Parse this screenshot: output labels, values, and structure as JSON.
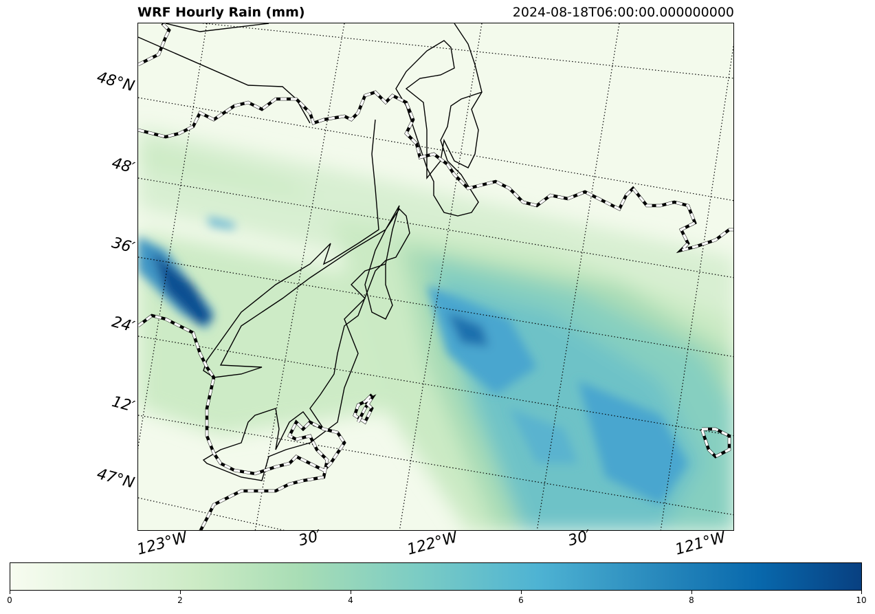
{
  "header": {
    "title": "WRF Hourly Rain (mm)",
    "timestamp": "2024-08-18T06:00:00.000000000"
  },
  "map": {
    "lat_labels": [
      "48°N",
      "48′",
      "36′",
      "24′",
      "12′",
      "47°N"
    ],
    "lon_labels": [
      "123°W",
      "30′",
      "122°W",
      "30′",
      "121°W"
    ],
    "colormap": "GnBu",
    "colors": {
      "low": "#f7fcf0",
      "mid": "#7bccc4",
      "high": "#084081",
      "coast": "#000000"
    }
  },
  "colorbar": {
    "ticks": [
      "0",
      "2",
      "4",
      "6",
      "8",
      "10"
    ],
    "range": [
      0,
      10
    ]
  }
}
